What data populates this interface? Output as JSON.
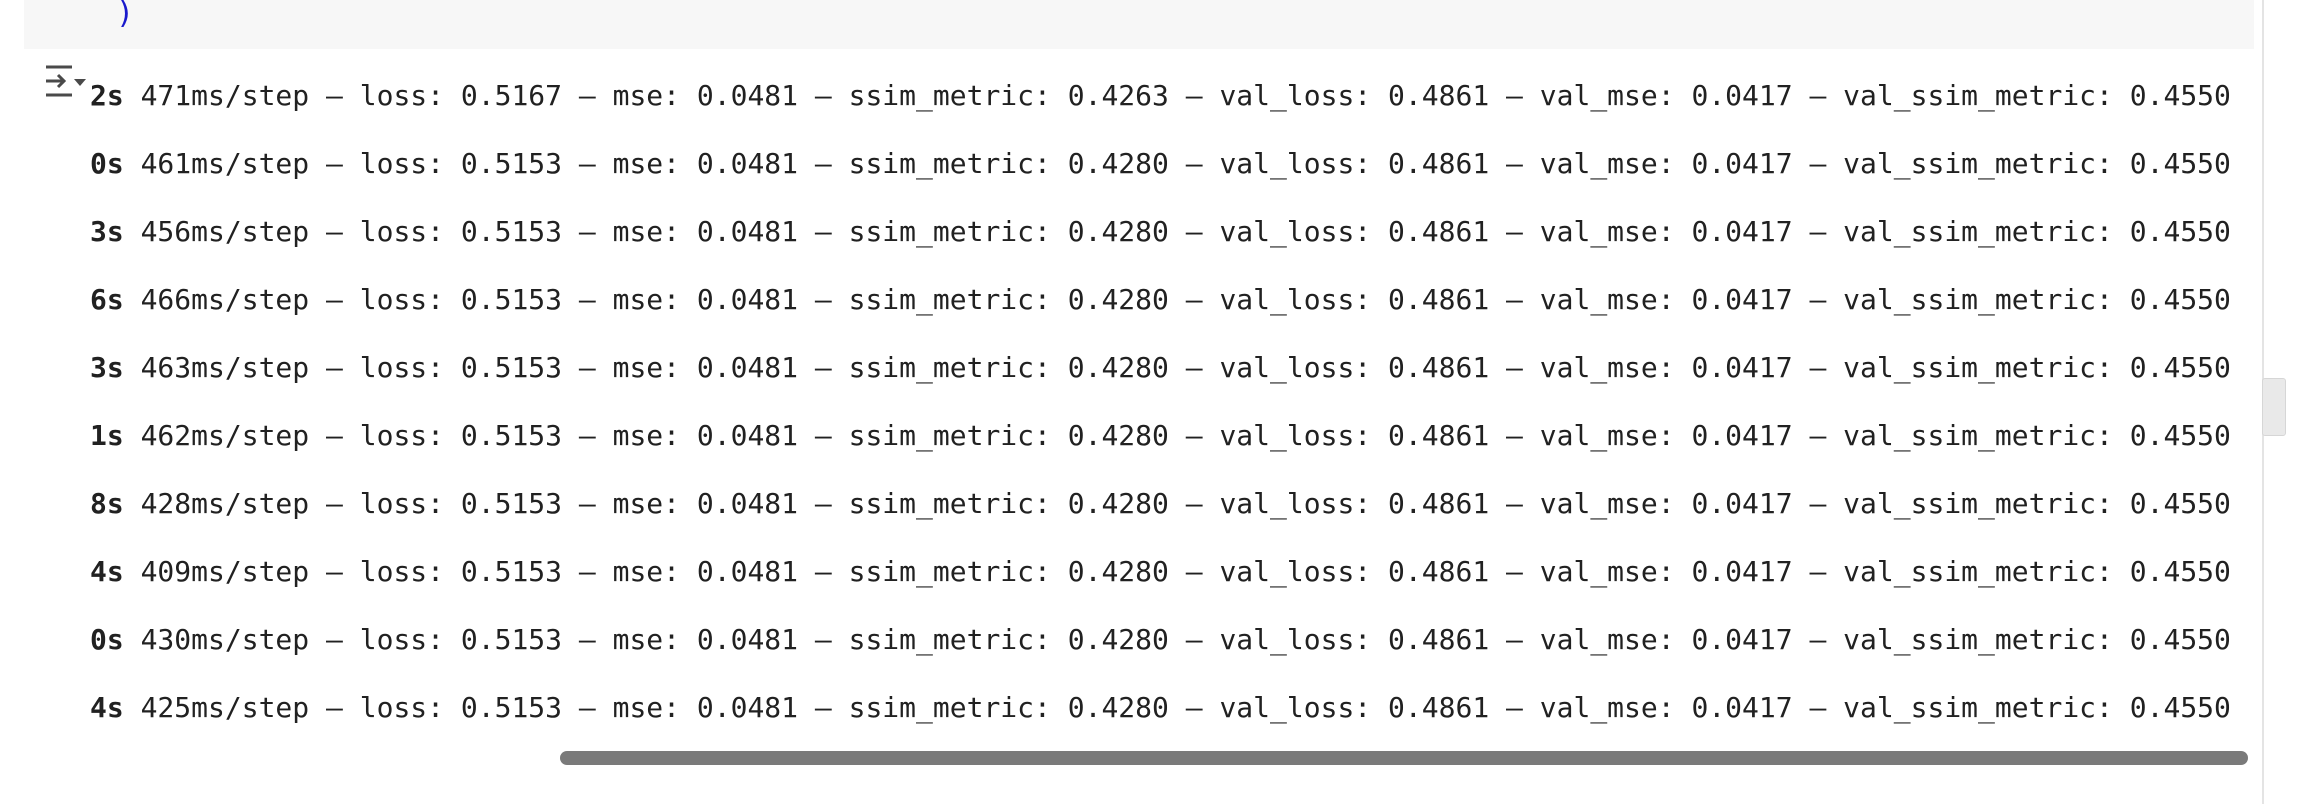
{
  "code_cell": {
    "closing_paren": ")"
  },
  "output": {
    "toggle_icon": "output-toggle-icon",
    "lines": [
      {
        "eta": "2s",
        "rest": " 471ms/step – loss: 0.5167 – mse: 0.0481 – ssim_metric: 0.4263 – val_loss: 0.4861 – val_mse: 0.0417 – val_ssim_metric: 0.4550"
      },
      {
        "eta": "0s",
        "rest": " 461ms/step – loss: 0.5153 – mse: 0.0481 – ssim_metric: 0.4280 – val_loss: 0.4861 – val_mse: 0.0417 – val_ssim_metric: 0.4550"
      },
      {
        "eta": "3s",
        "rest": " 456ms/step – loss: 0.5153 – mse: 0.0481 – ssim_metric: 0.4280 – val_loss: 0.4861 – val_mse: 0.0417 – val_ssim_metric: 0.4550"
      },
      {
        "eta": "6s",
        "rest": " 466ms/step – loss: 0.5153 – mse: 0.0481 – ssim_metric: 0.4280 – val_loss: 0.4861 – val_mse: 0.0417 – val_ssim_metric: 0.4550"
      },
      {
        "eta": "3s",
        "rest": " 463ms/step – loss: 0.5153 – mse: 0.0481 – ssim_metric: 0.4280 – val_loss: 0.4861 – val_mse: 0.0417 – val_ssim_metric: 0.4550"
      },
      {
        "eta": "1s",
        "rest": " 462ms/step – loss: 0.5153 – mse: 0.0481 – ssim_metric: 0.4280 – val_loss: 0.4861 – val_mse: 0.0417 – val_ssim_metric: 0.4550"
      },
      {
        "eta": "8s",
        "rest": " 428ms/step – loss: 0.5153 – mse: 0.0481 – ssim_metric: 0.4280 – val_loss: 0.4861 – val_mse: 0.0417 – val_ssim_metric: 0.4550"
      },
      {
        "eta": "4s",
        "rest": " 409ms/step – loss: 0.5153 – mse: 0.0481 – ssim_metric: 0.4280 – val_loss: 0.4861 – val_mse: 0.0417 – val_ssim_metric: 0.4550"
      },
      {
        "eta": "0s",
        "rest": " 430ms/step – loss: 0.5153 – mse: 0.0481 – ssim_metric: 0.4280 – val_loss: 0.4861 – val_mse: 0.0417 – val_ssim_metric: 0.4550"
      },
      {
        "eta": "4s",
        "rest": " 425ms/step – loss: 0.5153 – mse: 0.0481 – ssim_metric: 0.4280 – val_loss: 0.4861 – val_mse: 0.0417 – val_ssim_metric: 0.4550"
      }
    ]
  },
  "colors": {
    "code_bg": "#f7f7f7",
    "paren": "#1a1acc",
    "text": "#212121",
    "scrollbar": "#7a7a7a"
  }
}
